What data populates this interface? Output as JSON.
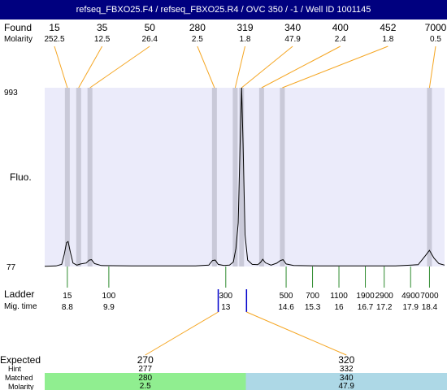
{
  "title": "refseq_FBXO25.F4 / refseq_FBXO25.R4 / OVC 350 / -1 / Well ID 1001145",
  "colors": {
    "title_bg": "#00007f",
    "plot_bg": "#ebebfa",
    "peak_band": "#c9c9d8",
    "connector": "#f5a623",
    "ladder_tick": "#2e8b2e",
    "expected_tick": "#0000cc",
    "matched_left": "#90ee90",
    "matched_right": "#add8e6"
  },
  "labels": {
    "found": "Found",
    "molarity": "Molarity",
    "fluo": "Fluo.",
    "ladder": "Ladder",
    "mig_time": "Mig. time",
    "expected": "Expected",
    "hint": "Hint",
    "matched": "Matched",
    "exp_molarity": "Molarity"
  },
  "chart_data": {
    "type": "line",
    "ylabel": "Fluo.",
    "ylim": [
      77,
      993
    ],
    "y_ticks": [
      "993",
      "77"
    ],
    "xlim": [
      8.2,
      18.8
    ],
    "found_peaks": [
      {
        "size": "15",
        "molarity": "252.5",
        "time": 8.8
      },
      {
        "size": "35",
        "molarity": "12.5",
        "time": 9.1
      },
      {
        "size": "50",
        "molarity": "26.4",
        "time": 9.4
      },
      {
        "size": "280",
        "molarity": "2.5",
        "time": 12.7
      },
      {
        "size": "319",
        "molarity": "1.8",
        "time": 13.25
      },
      {
        "size": "340",
        "molarity": "47.9",
        "time": 13.42
      },
      {
        "size": "400",
        "molarity": "2.4",
        "time": 13.95
      },
      {
        "size": "452",
        "molarity": "1.8",
        "time": 14.5
      },
      {
        "size": "7000",
        "molarity": "0.5",
        "time": 18.4
      }
    ],
    "ladder": [
      {
        "size": "15",
        "time": "8.8"
      },
      {
        "size": "100",
        "time": "9.9"
      },
      {
        "size": "300",
        "time": "13"
      },
      {
        "size": "500",
        "time": "14.6"
      },
      {
        "size": "700",
        "time": "15.3"
      },
      {
        "size": "1100",
        "time": "16"
      },
      {
        "size": "1900",
        "time": "16.7"
      },
      {
        "size": "2900",
        "time": "17.2"
      },
      {
        "size": "4900",
        "time": "17.9"
      },
      {
        "size": "7000",
        "time": "18.4"
      }
    ],
    "trace": [
      [
        8.2,
        78
      ],
      [
        8.5,
        80
      ],
      [
        8.65,
        88
      ],
      [
        8.72,
        140
      ],
      [
        8.78,
        200
      ],
      [
        8.82,
        205
      ],
      [
        8.88,
        150
      ],
      [
        8.95,
        95
      ],
      [
        9.05,
        84
      ],
      [
        9.15,
        90
      ],
      [
        9.3,
        95
      ],
      [
        9.38,
        110
      ],
      [
        9.44,
        112
      ],
      [
        9.52,
        92
      ],
      [
        9.7,
        82
      ],
      [
        10.5,
        80
      ],
      [
        11.5,
        80
      ],
      [
        12.2,
        80
      ],
      [
        12.55,
        84
      ],
      [
        12.65,
        108
      ],
      [
        12.72,
        110
      ],
      [
        12.8,
        88
      ],
      [
        12.95,
        82
      ],
      [
        13.1,
        84
      ],
      [
        13.2,
        100
      ],
      [
        13.27,
        170
      ],
      [
        13.33,
        300
      ],
      [
        13.38,
        700
      ],
      [
        13.42,
        993
      ],
      [
        13.46,
        700
      ],
      [
        13.51,
        240
      ],
      [
        13.58,
        110
      ],
      [
        13.7,
        88
      ],
      [
        13.85,
        86
      ],
      [
        13.92,
        98
      ],
      [
        13.98,
        114
      ],
      [
        14.05,
        96
      ],
      [
        14.2,
        84
      ],
      [
        14.35,
        94
      ],
      [
        14.45,
        108
      ],
      [
        14.52,
        112
      ],
      [
        14.6,
        90
      ],
      [
        14.8,
        82
      ],
      [
        15.5,
        80
      ],
      [
        16.5,
        80
      ],
      [
        17.5,
        80
      ],
      [
        18.1,
        86
      ],
      [
        18.28,
        130
      ],
      [
        18.4,
        160
      ],
      [
        18.52,
        120
      ],
      [
        18.65,
        92
      ],
      [
        18.8,
        84
      ]
    ],
    "expected": [
      {
        "size": "270",
        "hint": "277",
        "matched": "280",
        "molarity": "2.5",
        "time": 12.8
      },
      {
        "size": "320",
        "hint": "332",
        "matched": "340",
        "molarity": "47.9",
        "time": 13.55
      }
    ]
  }
}
